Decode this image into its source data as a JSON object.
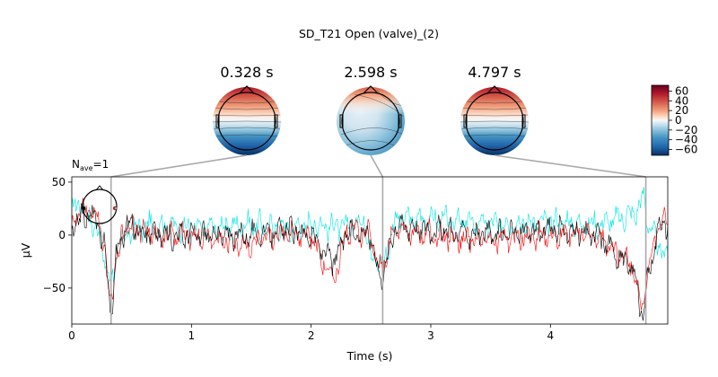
{
  "chart_data": {
    "type": "line",
    "title": "SD_T21 Open (valve)_(2)",
    "topomaps": [
      {
        "time_label": "0.328 s",
        "time": 0.328
      },
      {
        "time_label": "2.598 s",
        "time": 2.598
      },
      {
        "time_label": "4.797 s",
        "time": 4.797
      }
    ],
    "colorbar": {
      "ticks": [
        60,
        40,
        20,
        0,
        -20,
        -40,
        -60
      ],
      "tick_labels": [
        "60",
        "40",
        "20",
        "0",
        "−20",
        "−40",
        "−60"
      ],
      "range": [
        -72,
        72
      ],
      "cmap": "RdBu_r"
    },
    "nave": {
      "prefix": "N",
      "subscript": "ave",
      "value": "=1"
    },
    "xlabel": "Time (s)",
    "ylabel": "µV",
    "xlim": [
      0,
      4.98
    ],
    "ylim": [
      -84,
      55
    ],
    "xticks": [
      0,
      1,
      2,
      3,
      4
    ],
    "xtick_labels": [
      "0",
      "1",
      "2",
      "3",
      "4"
    ],
    "yticks": [
      50,
      0,
      -50
    ],
    "ytick_labels": [
      "50",
      "0",
      "−50"
    ],
    "series": [
      {
        "color": "#00e5e5",
        "width": 0.6,
        "anchors": [
          [
            0,
            22
          ],
          [
            0.08,
            32
          ],
          [
            0.15,
            15
          ],
          [
            0.22,
            5
          ],
          [
            0.26,
            -20
          ],
          [
            0.3,
            -30
          ],
          [
            0.32,
            -45
          ],
          [
            0.35,
            -40
          ],
          [
            0.4,
            -10
          ],
          [
            0.5,
            5
          ],
          [
            0.7,
            10
          ],
          [
            1.0,
            5
          ],
          [
            1.5,
            10
          ],
          [
            1.8,
            5
          ],
          [
            2.0,
            10
          ],
          [
            2.3,
            8
          ],
          [
            2.45,
            15
          ],
          [
            2.5,
            -20
          ],
          [
            2.57,
            -25
          ],
          [
            2.6,
            -30
          ],
          [
            2.65,
            -10
          ],
          [
            2.7,
            15
          ],
          [
            3.0,
            15
          ],
          [
            3.5,
            10
          ],
          [
            4.0,
            12
          ],
          [
            4.4,
            10
          ],
          [
            4.7,
            20
          ],
          [
            4.78,
            35
          ],
          [
            4.82,
            10
          ],
          [
            4.9,
            -10
          ],
          [
            4.98,
            -20
          ]
        ]
      },
      {
        "color": "#ff0000",
        "width": 0.6,
        "anchors": [
          [
            0,
            10
          ],
          [
            0.1,
            25
          ],
          [
            0.2,
            20
          ],
          [
            0.26,
            0
          ],
          [
            0.3,
            -45
          ],
          [
            0.33,
            -68
          ],
          [
            0.36,
            -30
          ],
          [
            0.45,
            10
          ],
          [
            0.7,
            0
          ],
          [
            1.0,
            0
          ],
          [
            1.5,
            -10
          ],
          [
            1.8,
            5
          ],
          [
            2.0,
            0
          ],
          [
            2.1,
            -25
          ],
          [
            2.2,
            -40
          ],
          [
            2.3,
            5
          ],
          [
            2.5,
            0
          ],
          [
            2.57,
            -35
          ],
          [
            2.62,
            -25
          ],
          [
            2.7,
            5
          ],
          [
            3.0,
            0
          ],
          [
            3.5,
            -5
          ],
          [
            4.0,
            0
          ],
          [
            4.4,
            0
          ],
          [
            4.7,
            -30
          ],
          [
            4.76,
            -75
          ],
          [
            4.8,
            -40
          ],
          [
            4.9,
            10
          ],
          [
            4.98,
            15
          ]
        ]
      },
      {
        "color": "#000000",
        "width": 0.6,
        "anchors": [
          [
            0,
            5
          ],
          [
            0.1,
            20
          ],
          [
            0.2,
            15
          ],
          [
            0.27,
            -10
          ],
          [
            0.31,
            -55
          ],
          [
            0.33,
            -75
          ],
          [
            0.37,
            -20
          ],
          [
            0.45,
            10
          ],
          [
            0.7,
            0
          ],
          [
            1.0,
            0
          ],
          [
            1.5,
            0
          ],
          [
            1.8,
            5
          ],
          [
            2.0,
            0
          ],
          [
            2.1,
            -15
          ],
          [
            2.2,
            -25
          ],
          [
            2.3,
            5
          ],
          [
            2.5,
            0
          ],
          [
            2.57,
            -40
          ],
          [
            2.62,
            -30
          ],
          [
            2.7,
            10
          ],
          [
            3.0,
            5
          ],
          [
            3.5,
            0
          ],
          [
            4.0,
            5
          ],
          [
            4.4,
            0
          ],
          [
            4.7,
            -35
          ],
          [
            4.77,
            -80
          ],
          [
            4.81,
            -45
          ],
          [
            4.9,
            10
          ],
          [
            4.98,
            10
          ]
        ]
      }
    ]
  }
}
